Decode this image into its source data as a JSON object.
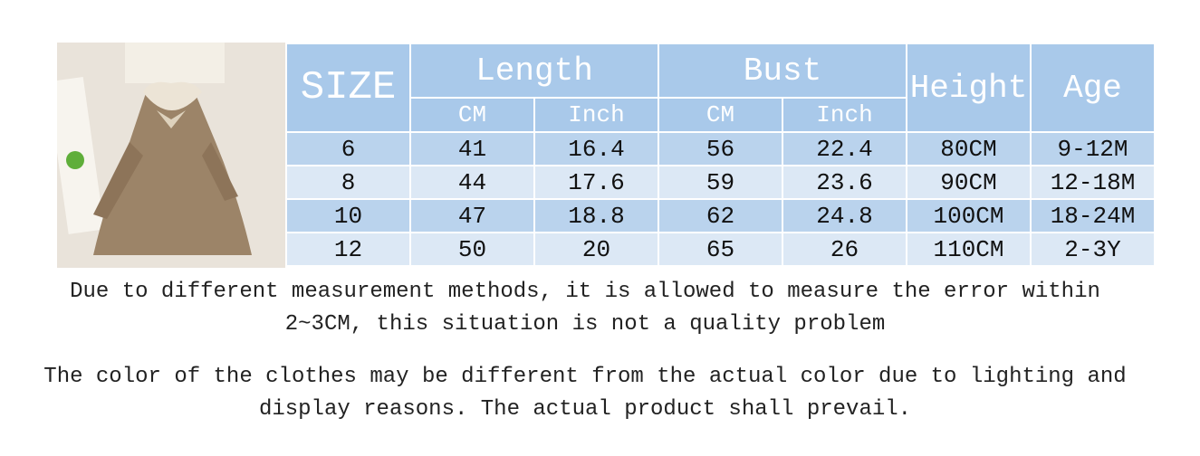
{
  "table": {
    "header": {
      "size": "SIZE",
      "length": "Length",
      "bust": "Bust",
      "height": "Height",
      "age": "Age",
      "sub": [
        "CM",
        "Inch",
        "CM",
        "Inch"
      ]
    },
    "rows": [
      [
        6,
        41,
        16.4,
        56,
        22.4,
        "80CM",
        "9-12M"
      ],
      [
        8,
        44,
        17.6,
        59,
        23.6,
        "90CM",
        "12-18M"
      ],
      [
        10,
        47,
        18.8,
        62,
        24.8,
        "100CM",
        "18-24M"
      ],
      [
        12,
        50,
        20,
        65,
        26,
        "110CM",
        "2-3Y"
      ]
    ]
  },
  "notes": [
    "Due to different measurement methods, it is allowed to measure the error within 2~3CM, this situation is not a quality problem",
    "The color of the clothes may be different from the actual color due to lighting and display reasons. The actual product shall prevail."
  ]
}
